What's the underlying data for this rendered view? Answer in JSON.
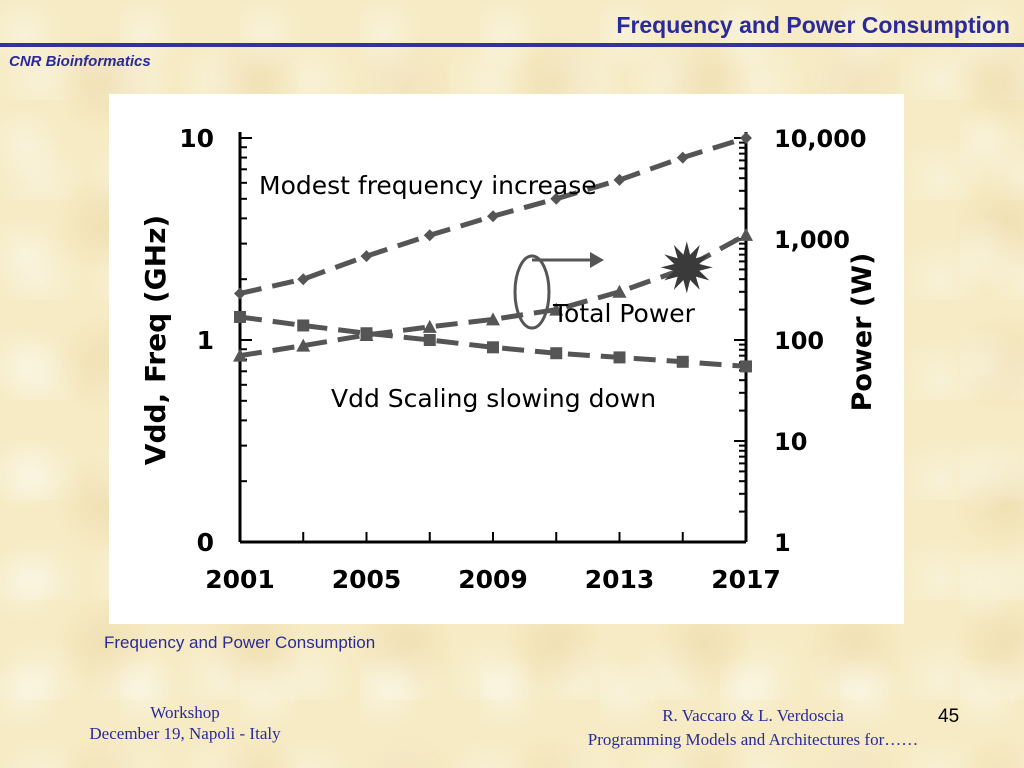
{
  "slide": {
    "title": "Frequency and Power Consumption",
    "org": "CNR Bioinformatics",
    "caption": "Frequency and Power Consumption",
    "footer_left": [
      "Workshop",
      "December 19, Napoli - Italy"
    ],
    "footer_right": [
      "R. Vaccaro & L. Verdoscia",
      "Programming Models and Architectures for……"
    ],
    "page_number": "45",
    "colors": {
      "title": "#2a2a9a",
      "background": "#f6ebc4",
      "series": "#555555"
    }
  },
  "chart_data": {
    "type": "line",
    "x_ticks": [
      "2001",
      "2005",
      "2009",
      "2013",
      "2017"
    ],
    "xlim": [
      2001,
      2017
    ],
    "left_axis": {
      "label": "Vdd, Freq (GHz)",
      "scale": "log",
      "ticks": [
        "10",
        "1",
        "0"
      ]
    },
    "right_axis": {
      "label": "Power (W)",
      "scale": "log",
      "ticks": [
        "10,000",
        "1,000",
        "100",
        "10",
        "1"
      ]
    },
    "grid": false,
    "series": [
      {
        "name": "Modest frequency increase",
        "axis": "left",
        "marker": "diamond",
        "x": [
          2001,
          2003,
          2005,
          2007,
          2009,
          2011,
          2013,
          2015,
          2017
        ],
        "y": [
          1.7,
          2.0,
          2.6,
          3.3,
          4.1,
          5.0,
          6.2,
          8.0,
          10.0
        ]
      },
      {
        "name": "Vdd Scaling slowing down",
        "axis": "left",
        "marker": "square",
        "x": [
          2001,
          2003,
          2005,
          2007,
          2009,
          2011,
          2013,
          2015,
          2017
        ],
        "y": [
          1.3,
          1.18,
          1.08,
          1.0,
          0.92,
          0.86,
          0.82,
          0.78,
          0.74
        ]
      },
      {
        "name": "Total Power",
        "axis": "right",
        "marker": "triangle",
        "x": [
          2001,
          2003,
          2005,
          2007,
          2009,
          2011,
          2013,
          2015,
          2017
        ],
        "y": [
          70,
          88,
          112,
          135,
          160,
          200,
          300,
          500,
          1100
        ]
      }
    ],
    "annotations": [
      "Modest frequency increase",
      "Total Power",
      "Vdd Scaling slowing down"
    ]
  }
}
